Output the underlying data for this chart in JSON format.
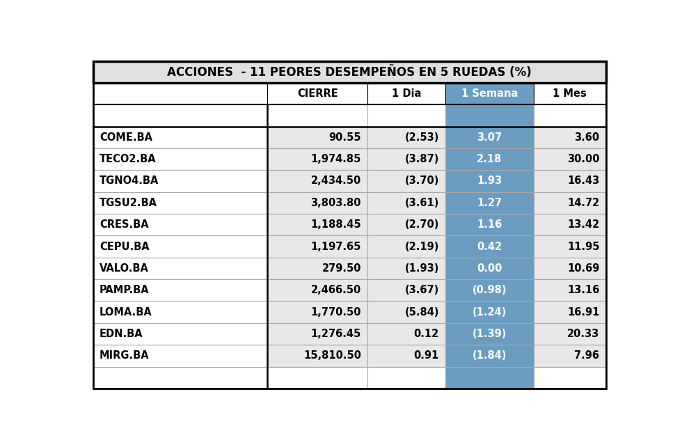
{
  "title": "ACCIONES  - 11 PEORES DESEMPEÑOS EN 5 RUEDAS (%)",
  "col_headers": [
    "CIERRE",
    "1 Dia",
    "1 Semana",
    "1 Mes"
  ],
  "rows": [
    [
      "COME.BA",
      "90.55",
      "(2.53)",
      "3.07",
      "3.60"
    ],
    [
      "TECO2.BA",
      "1,974.85",
      "(3.87)",
      "2.18",
      "30.00"
    ],
    [
      "TGNO4.BA",
      "2,434.50",
      "(3.70)",
      "1.93",
      "16.43"
    ],
    [
      "TGSU2.BA",
      "3,803.80",
      "(3.61)",
      "1.27",
      "14.72"
    ],
    [
      "CRES.BA",
      "1,188.45",
      "(2.70)",
      "1.16",
      "13.42"
    ],
    [
      "CEPU.BA",
      "1,197.65",
      "(2.19)",
      "0.42",
      "11.95"
    ],
    [
      "VALO.BA",
      "279.50",
      "(1.93)",
      "0.00",
      "10.69"
    ],
    [
      "PAMP.BA",
      "2,466.50",
      "(3.67)",
      "(0.98)",
      "13.16"
    ],
    [
      "LOMA.BA",
      "1,770.50",
      "(5.84)",
      "(1.24)",
      "16.91"
    ],
    [
      "EDN.BA",
      "1,276.45",
      "0.12",
      "(1.39)",
      "20.33"
    ],
    [
      "MIRG.BA",
      "15,810.50",
      "0.91",
      "(1.84)",
      "7.96"
    ]
  ],
  "title_bg": "#e0e0e0",
  "header_bg": "#ffffff",
  "data_bg": "#e8e8e8",
  "name_col_bg": "#ffffff",
  "semana_col_bg": "#6b9dc2",
  "semana_col_text": "#ffffff",
  "outer_border": "#000000",
  "inner_border": "#aaaaaa",
  "text_color": "#000000",
  "fig_bg": "#ffffff",
  "title_fontsize": 12,
  "header_fontsize": 10.5,
  "data_fontsize": 10.5
}
